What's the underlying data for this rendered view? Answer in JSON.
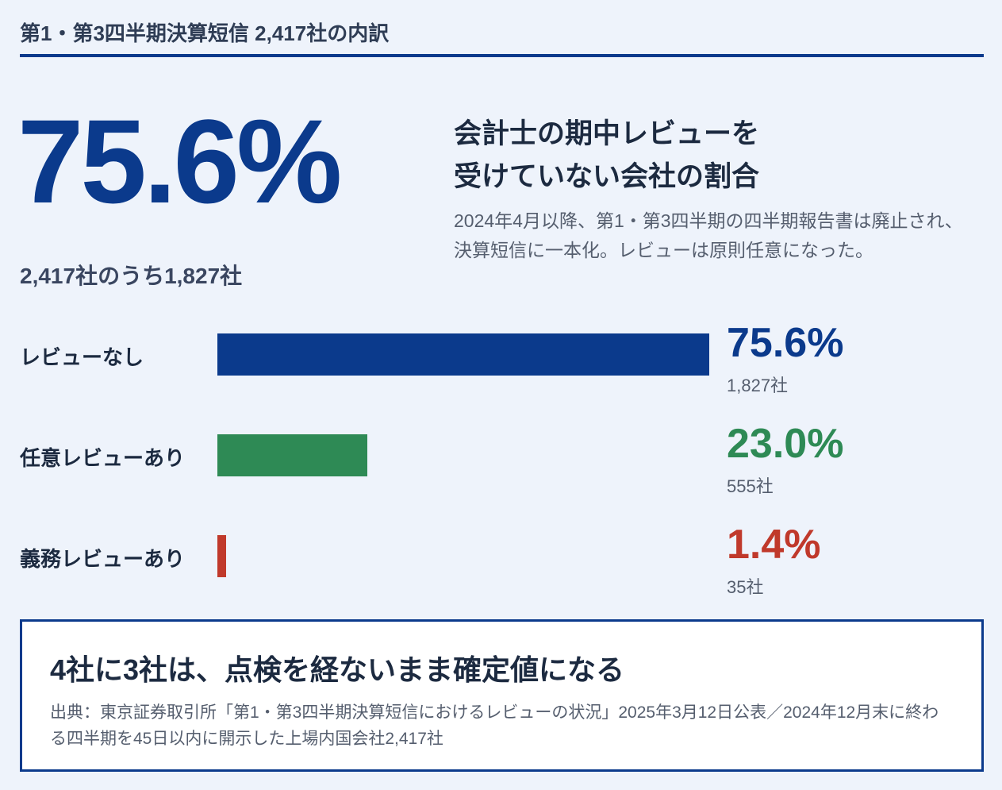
{
  "header": {
    "title": "第1・第3四半期決算短信 2,417社の内訳"
  },
  "headline": {
    "stat": "75.6%",
    "stat_note": "2,417社のうち1,827社",
    "heading_lines": [
      "会計士の期中レビューを",
      "受けていない会社の割合"
    ],
    "description": "2024年4月以降、第1・第3四半期の四半期報告書は廃止され、決算短信に一本化。レビューは原則任意になった。"
  },
  "chart_data": {
    "type": "hbar",
    "categories": [
      "レビューなし",
      "任意レビューあり",
      "義務レビューあり"
    ],
    "values": [
      75.6,
      23.0,
      1.4
    ],
    "value_labels": [
      "75.6%",
      "23.0%",
      "1.4%"
    ],
    "count_labels": [
      "1,827社",
      "555社",
      "35社"
    ],
    "colors": [
      "#0b3a8c",
      "#2e8a55",
      "#c0392b"
    ],
    "xlim": [
      0,
      100
    ]
  },
  "footer": {
    "heading": "4社に3社は、点検を経ないまま確定値になる",
    "source": "出典：東京証券取引所「第1・第3四半期決算短信におけるレビューの状況」2025年3月12日公表／2024年12月末に終わる四半期を45日以内に開示した上場内国会社2,417社"
  }
}
